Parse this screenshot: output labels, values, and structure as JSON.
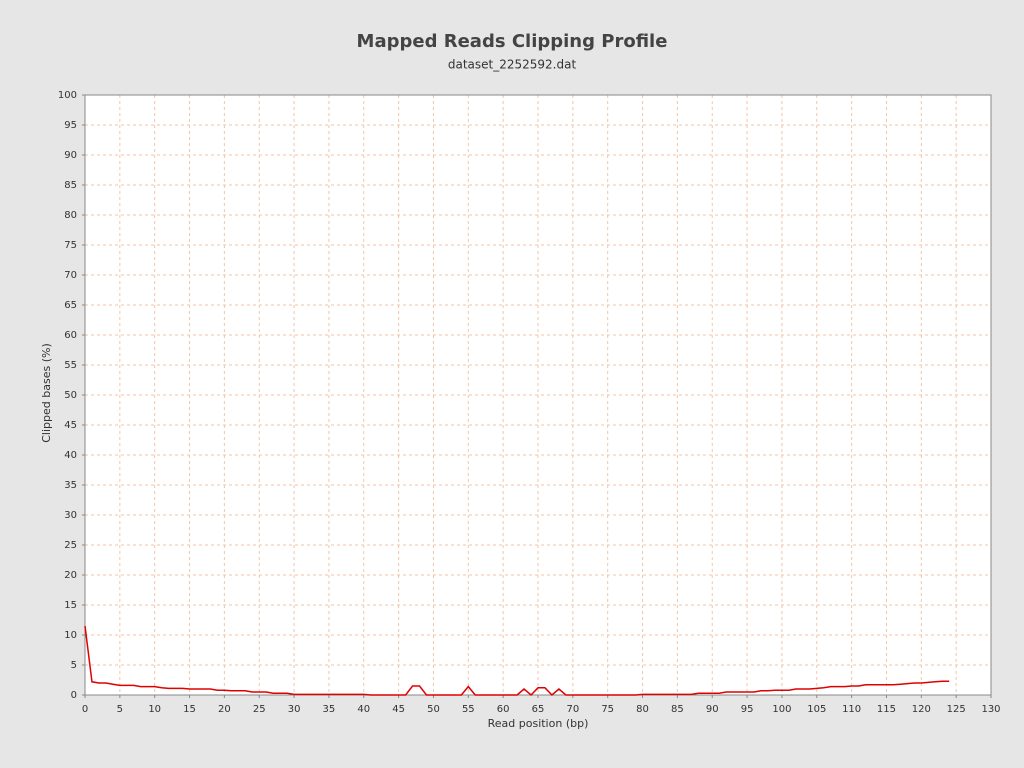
{
  "chart_data": {
    "type": "line",
    "title": "Mapped Reads Clipping Profile",
    "subtitle": "dataset_2252592.dat",
    "x_label": "Read position (bp)",
    "y_label": "Clipped bases (%)",
    "x": [
      0,
      1,
      2,
      3,
      4,
      5,
      6,
      7,
      8,
      9,
      10,
      11,
      12,
      13,
      14,
      15,
      16,
      17,
      18,
      19,
      20,
      21,
      22,
      23,
      24,
      25,
      26,
      27,
      28,
      29,
      30,
      31,
      32,
      33,
      34,
      35,
      36,
      37,
      38,
      39,
      40,
      41,
      42,
      43,
      44,
      45,
      46,
      47,
      48,
      49,
      50,
      51,
      52,
      53,
      54,
      55,
      56,
      57,
      58,
      59,
      60,
      61,
      62,
      63,
      64,
      65,
      66,
      67,
      68,
      69,
      70,
      71,
      72,
      73,
      74,
      75,
      76,
      77,
      78,
      79,
      80,
      81,
      82,
      83,
      84,
      85,
      86,
      87,
      88,
      89,
      90,
      91,
      92,
      93,
      94,
      95,
      96,
      97,
      98,
      99,
      100,
      101,
      102,
      103,
      104,
      105,
      106,
      107,
      108,
      109,
      110,
      111,
      112,
      113,
      114,
      115,
      116,
      117,
      118,
      119,
      120,
      121,
      122,
      123,
      124
    ],
    "series": [
      {
        "color": "#e00000",
        "values": [
          11.5,
          2.2,
          2.0,
          2.0,
          1.8,
          1.6,
          1.6,
          1.6,
          1.4,
          1.4,
          1.4,
          1.2,
          1.1,
          1.1,
          1.1,
          1.0,
          1.0,
          1.0,
          1.0,
          0.8,
          0.8,
          0.7,
          0.7,
          0.7,
          0.5,
          0.5,
          0.5,
          0.3,
          0.3,
          0.3,
          0.1,
          0.1,
          0.1,
          0.1,
          0.1,
          0.1,
          0.1,
          0.1,
          0.1,
          0.1,
          0.1,
          0,
          0,
          0,
          0,
          0,
          0,
          1.5,
          1.5,
          0,
          0,
          0,
          0,
          0,
          0,
          1.4,
          0,
          0,
          0,
          0,
          0,
          0,
          0,
          1.0,
          0,
          1.2,
          1.2,
          0,
          1.0,
          0,
          0,
          0,
          0,
          0,
          0,
          0,
          0,
          0,
          0,
          0,
          0.1,
          0.1,
          0.1,
          0.1,
          0.1,
          0.1,
          0.1,
          0.1,
          0.3,
          0.3,
          0.3,
          0.3,
          0.5,
          0.5,
          0.5,
          0.5,
          0.5,
          0.7,
          0.7,
          0.8,
          0.8,
          0.8,
          1.0,
          1.0,
          1.0,
          1.1,
          1.2,
          1.4,
          1.4,
          1.4,
          1.5,
          1.5,
          1.7,
          1.7,
          1.7,
          1.7,
          1.7,
          1.8,
          1.9,
          2.0,
          2.0,
          2.1,
          2.2,
          2.3,
          2.3
        ]
      }
    ],
    "xlim": [
      0,
      130
    ],
    "xticks": [
      0,
      5,
      10,
      15,
      20,
      25,
      30,
      35,
      40,
      45,
      50,
      55,
      60,
      65,
      70,
      75,
      80,
      85,
      90,
      95,
      100,
      105,
      110,
      115,
      120,
      125,
      130
    ],
    "ylim": [
      0,
      100
    ],
    "yticks": [
      0,
      5,
      10,
      15,
      20,
      25,
      30,
      35,
      40,
      45,
      50,
      55,
      60,
      65,
      70,
      75,
      80,
      85,
      90,
      95,
      100
    ],
    "grid": true
  }
}
